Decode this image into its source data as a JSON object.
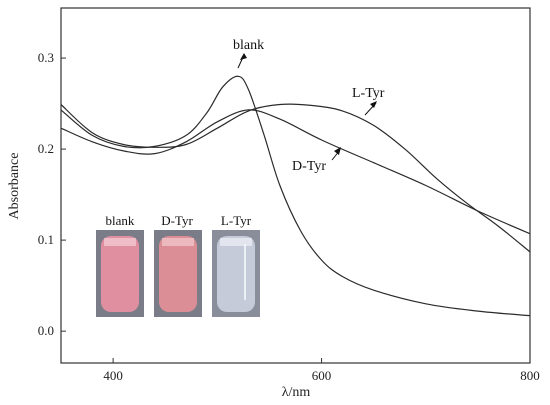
{
  "chart_data": {
    "type": "line",
    "title": "",
    "xlabel": "λ/nm",
    "ylabel": "Absorbance",
    "xlim": [
      350,
      800
    ],
    "ylim": [
      -0.035,
      0.355
    ],
    "xticks": [
      400,
      600,
      800
    ],
    "xtick_labels": [
      "400",
      "600",
      "800"
    ],
    "yticks": [
      0.0,
      0.1,
      0.2,
      0.3
    ],
    "ytick_labels": [
      "0.0",
      "0.1",
      "0.2",
      "0.3"
    ],
    "grid": false,
    "legend": "none",
    "series": [
      {
        "name": "blank",
        "x": [
          350,
          380,
          410,
          440,
          470,
          490,
          505,
          520,
          530,
          545,
          560,
          580,
          600,
          620,
          650,
          700,
          750,
          800
        ],
        "y": [
          0.243,
          0.215,
          0.203,
          0.203,
          0.215,
          0.24,
          0.268,
          0.28,
          0.265,
          0.215,
          0.16,
          0.11,
          0.078,
          0.06,
          0.045,
          0.03,
          0.022,
          0.017
        ]
      },
      {
        "name": "L-Tyr",
        "x": [
          350,
          380,
          410,
          440,
          470,
          500,
          530,
          560,
          590,
          620,
          650,
          680,
          710,
          740,
          770,
          800
        ],
        "y": [
          0.249,
          0.218,
          0.205,
          0.202,
          0.205,
          0.223,
          0.242,
          0.249,
          0.248,
          0.242,
          0.226,
          0.2,
          0.168,
          0.14,
          0.115,
          0.087
        ]
      },
      {
        "name": "D-Tyr",
        "x": [
          350,
          380,
          410,
          440,
          470,
          500,
          530,
          560,
          600,
          650,
          700,
          750,
          800
        ],
        "y": [
          0.223,
          0.208,
          0.198,
          0.195,
          0.208,
          0.23,
          0.243,
          0.233,
          0.21,
          0.185,
          0.16,
          0.132,
          0.107
        ]
      }
    ],
    "annotations": [
      {
        "text": "blank",
        "target_series": "blank"
      },
      {
        "text": "L-Tyr",
        "target_series": "L-Tyr"
      },
      {
        "text": "D-Tyr",
        "target_series": "D-Tyr"
      }
    ]
  },
  "inset": {
    "labels": [
      "blank",
      "D-Tyr",
      "L-Tyr"
    ],
    "colors": [
      "#e08fa0",
      "#dc8e96",
      "#c5cbd9"
    ]
  }
}
